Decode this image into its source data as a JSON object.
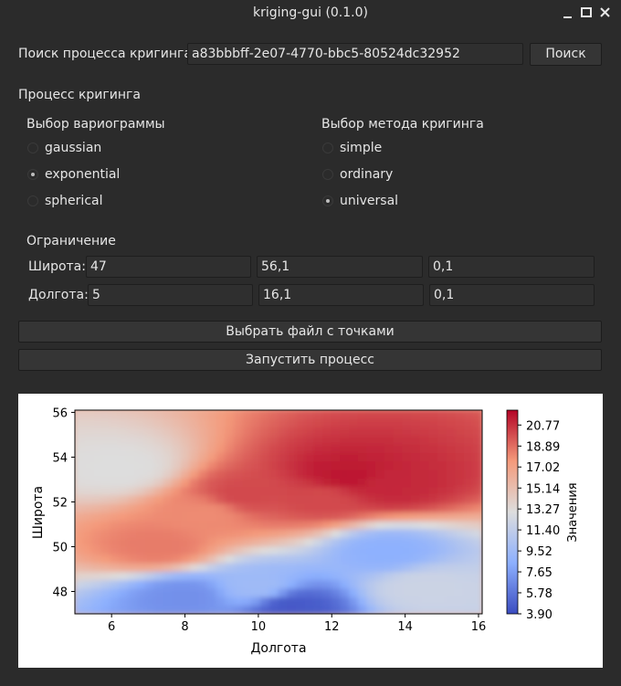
{
  "window": {
    "title": "kriging-gui (0.1.0)",
    "icons": [
      "minimize-icon",
      "maximize-icon",
      "close-icon"
    ]
  },
  "search": {
    "label": "Поиск процесса кригинга",
    "value": "a83bbbff-2e07-4770-bbc5-80524dc32952",
    "button": "Поиск"
  },
  "process": {
    "heading": "Процесс кригинга",
    "variogram": {
      "label": "Выбор вариограммы",
      "options": [
        "gaussian",
        "exponential",
        "spherical"
      ],
      "selected": "exponential"
    },
    "method": {
      "label": "Выбор метода кригинга",
      "options": [
        "simple",
        "ordinary",
        "universal"
      ],
      "selected": "universal"
    }
  },
  "limits": {
    "heading": "Ограничение",
    "latitude": {
      "label": "Широта:",
      "values": [
        "47",
        "56,1",
        "0,1"
      ]
    },
    "longitude": {
      "label": "Долгота:",
      "values": [
        "5",
        "16,1",
        "0,1"
      ]
    }
  },
  "actions": {
    "choose_file": "Выбрать файл с точками",
    "run": "Запустить процесс"
  },
  "chart_data": {
    "type": "heatmap",
    "title": "",
    "xlabel": "Долгота",
    "ylabel": "Широта",
    "xlim": [
      5,
      16.1
    ],
    "ylim": [
      47,
      56.1
    ],
    "x_ticks": [
      "6",
      "8",
      "10",
      "12",
      "14",
      "16"
    ],
    "y_ticks": [
      "48",
      "50",
      "52",
      "54",
      "56"
    ],
    "colorbar": {
      "label": "Значения",
      "min": 3.9,
      "max": 22.1,
      "ticks": [
        "20.77",
        "18.89",
        "17.02",
        "15.14",
        "13.27",
        "11.40",
        "9.52",
        "7.65",
        "5.78",
        "3.90"
      ],
      "colormap": "coolwarm",
      "colors": {
        "low": "#3b4cc0",
        "mid": "#dddddd",
        "high": "#b40426"
      }
    },
    "hotspots": [
      {
        "lon": 12.4,
        "lat": 53.1,
        "value": 21.5
      },
      {
        "lon": 13.6,
        "lat": 52.7,
        "value": 21.0
      },
      {
        "lon": 9.6,
        "lat": 52.3,
        "value": 20.0
      },
      {
        "lon": 11.8,
        "lat": 52.2,
        "value": 20.0
      },
      {
        "lon": 7.3,
        "lat": 50.0,
        "value": 18.5
      },
      {
        "lon": 8.6,
        "lat": 51.5,
        "value": 18.0
      },
      {
        "lon": 10.9,
        "lat": 47.4,
        "value": 4.5
      },
      {
        "lon": 8.0,
        "lat": 47.8,
        "value": 7.0
      },
      {
        "lon": 13.5,
        "lat": 49.8,
        "value": 8.5
      },
      {
        "lon": 14.5,
        "lat": 48.2,
        "value": 12.0
      },
      {
        "lon": 6.2,
        "lat": 53.5,
        "value": 13.0
      },
      {
        "lon": 10.0,
        "lat": 48.2,
        "value": 9.5
      }
    ]
  }
}
